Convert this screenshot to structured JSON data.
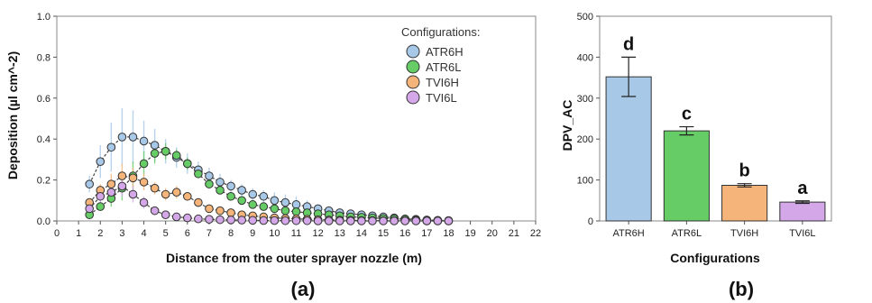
{
  "chart_data": [
    {
      "type": "line",
      "panel_label": "(a)",
      "xlabel": "Distance from the outer sprayer nozzle (m)",
      "ylabel": "Deposition (µl cm^-2)",
      "xlim": [
        0,
        22
      ],
      "ylim": [
        0,
        1.0
      ],
      "x_ticks": [
        "0",
        "1",
        "2",
        "3",
        "4",
        "5",
        "6",
        "7",
        "8",
        "9",
        "10",
        "11",
        "12",
        "13",
        "14",
        "15",
        "16",
        "17",
        "18",
        "19",
        "20",
        "21",
        "22"
      ],
      "y_ticks": [
        "0.0",
        "0.2",
        "0.4",
        "0.6",
        "0.8",
        "1.0"
      ],
      "legend": {
        "title": "Configurations:",
        "placement": "top-right"
      },
      "x": [
        1.5,
        2,
        2.5,
        3,
        3.5,
        4,
        4.5,
        5,
        5.5,
        6,
        6.5,
        7,
        7.5,
        8,
        8.5,
        9,
        9.5,
        10,
        10.5,
        11,
        11.5,
        12,
        12.5,
        13,
        13.5,
        14,
        14.5,
        15,
        15.5,
        16,
        16.5,
        17,
        17.5,
        18
      ],
      "series": [
        {
          "name": "ATR6H",
          "color": "#a8c8e8",
          "values": [
            0.18,
            0.29,
            0.36,
            0.41,
            0.41,
            0.39,
            0.37,
            0.34,
            0.31,
            0.28,
            0.25,
            0.22,
            0.19,
            0.17,
            0.15,
            0.13,
            0.12,
            0.1,
            0.09,
            0.08,
            0.07,
            0.06,
            0.05,
            0.04,
            0.035,
            0.03,
            0.025,
            0.02,
            0.015,
            0.01,
            0.008,
            0.005,
            0.003,
            0.002
          ],
          "err": [
            0.04,
            0.08,
            0.12,
            0.14,
            0.13,
            0.1,
            0.08,
            0.06,
            0.05,
            0.05,
            0.04,
            0.04,
            0.04,
            0.03,
            0.03,
            0.03,
            0.03,
            0.04,
            0.04,
            0.04,
            0.03,
            0.02,
            0.02,
            0.015,
            0.01,
            0.01,
            0.01,
            0.01,
            0.005,
            0.005,
            0.004,
            0.003,
            0.002,
            0.001
          ]
        },
        {
          "name": "ATR6L",
          "color": "#66cc66",
          "values": [
            0.03,
            0.07,
            0.11,
            0.16,
            0.22,
            0.28,
            0.33,
            0.34,
            0.32,
            0.28,
            0.23,
            0.18,
            0.15,
            0.12,
            0.1,
            0.08,
            0.07,
            0.06,
            0.05,
            0.045,
            0.04,
            0.035,
            0.03,
            0.025,
            0.02,
            0.018,
            0.015,
            0.012,
            0.01,
            0.008,
            0.005,
            0.003,
            0.002,
            0.001
          ],
          "err": [
            0.01,
            0.02,
            0.04,
            0.06,
            0.07,
            0.06,
            0.05,
            0.04,
            0.03,
            0.03,
            0.02,
            0.02,
            0.02,
            0.015,
            0.015,
            0.01,
            0.01,
            0.01,
            0.01,
            0.01,
            0.008,
            0.007,
            0.006,
            0.005,
            0.004,
            0.003,
            0.003,
            0.002,
            0.002,
            0.002,
            0.001,
            0.001,
            0.001,
            0.001
          ]
        },
        {
          "name": "TVI6H",
          "color": "#f5b57a",
          "values": [
            0.09,
            0.15,
            0.18,
            0.22,
            0.21,
            0.19,
            0.16,
            0.13,
            0.14,
            0.12,
            0.09,
            0.06,
            0.05,
            0.04,
            0.03,
            0.025,
            0.02,
            0.015,
            0.012,
            0.01,
            0.008,
            0.006,
            0.005,
            0.004,
            0.003,
            0.002,
            0.002,
            0.001,
            0.001,
            0.001,
            0.001,
            0.0,
            0.0,
            0.0
          ],
          "err": [
            0.02,
            0.03,
            0.05,
            0.06,
            0.05,
            0.04,
            0.03,
            0.03,
            0.03,
            0.02,
            0.02,
            0.015,
            0.01,
            0.01,
            0.008,
            0.006,
            0.005,
            0.004,
            0.003,
            0.002,
            0.002,
            0.002,
            0.001,
            0.001,
            0.001,
            0.001,
            0.001,
            0.001,
            0.0,
            0.0,
            0.0,
            0.0,
            0.0,
            0.0
          ]
        },
        {
          "name": "TVI6L",
          "color": "#d4a8e8",
          "values": [
            0.06,
            0.12,
            0.14,
            0.17,
            0.13,
            0.09,
            0.05,
            0.03,
            0.02,
            0.015,
            0.01,
            0.008,
            0.006,
            0.005,
            0.004,
            0.003,
            0.002,
            0.002,
            0.001,
            0.001,
            0.001,
            0.0,
            0.0,
            0.0,
            0.0,
            0.0,
            0.0,
            0.0,
            0.0,
            0.0,
            0.0,
            0.0,
            0.0,
            0.0
          ],
          "err": [
            0.015,
            0.03,
            0.04,
            0.05,
            0.04,
            0.03,
            0.02,
            0.01,
            0.008,
            0.006,
            0.004,
            0.003,
            0.002,
            0.002,
            0.001,
            0.001,
            0.001,
            0.001,
            0.0,
            0.0,
            0.0,
            0.0,
            0.0,
            0.0,
            0.0,
            0.0,
            0.0,
            0.0,
            0.0,
            0.0,
            0.0,
            0.0,
            0.0,
            0.0
          ]
        }
      ]
    },
    {
      "type": "bar",
      "panel_label": "(b)",
      "xlabel": "Configurations",
      "ylabel": "DPV_AC",
      "ylim": [
        0,
        500
      ],
      "y_ticks": [
        "0",
        "100",
        "200",
        "300",
        "400",
        "500"
      ],
      "categories": [
        "ATR6H",
        "ATR6L",
        "TVI6H",
        "TVI6L"
      ],
      "values": [
        352,
        220,
        87,
        46
      ],
      "err": [
        48,
        10,
        4,
        3
      ],
      "colors": [
        "#a8c8e8",
        "#66cc66",
        "#f5b57a",
        "#d4a8e8"
      ],
      "letters": [
        "d",
        "c",
        "b",
        "a"
      ]
    }
  ]
}
